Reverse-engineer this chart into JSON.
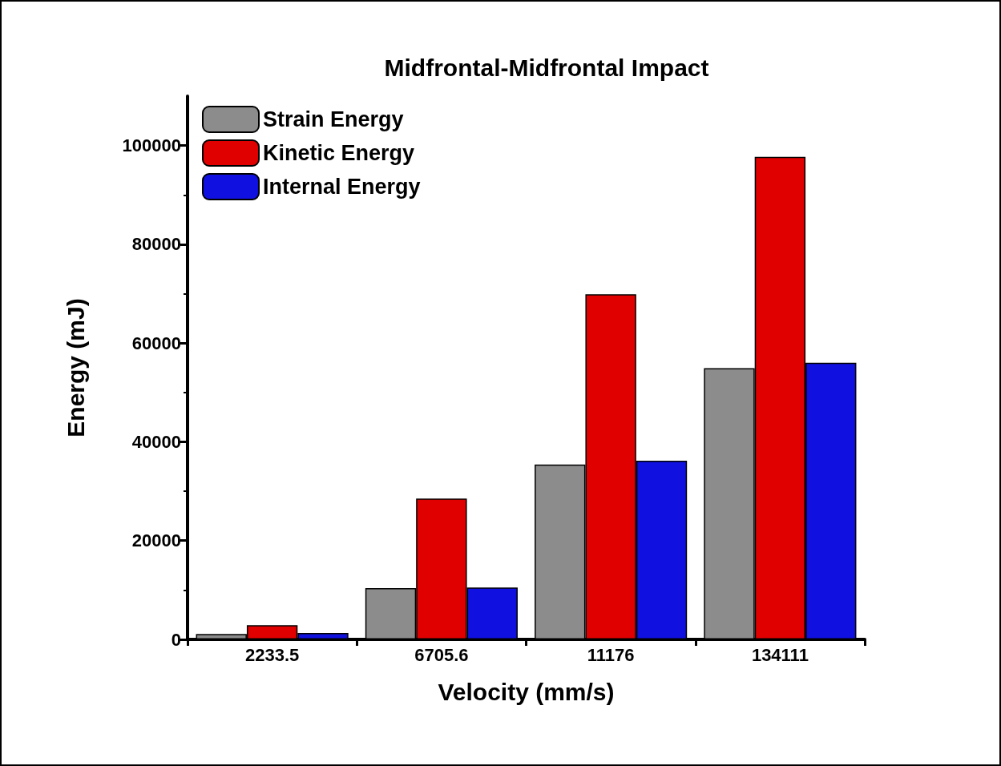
{
  "chart_data": {
    "type": "bar",
    "title": "Midfrontal-Midfrontal Impact",
    "xlabel": "Velocity (mm/s)",
    "ylabel": "Energy (mJ)",
    "categories": [
      "2233.5",
      "6705.6",
      "11176",
      "134111"
    ],
    "series": [
      {
        "name": "Strain Energy",
        "color": "#8c8c8c",
        "values": [
          1100,
          10400,
          35400,
          54900
        ]
      },
      {
        "name": "Kinetic Energy",
        "color": "#e00000",
        "values": [
          2900,
          28500,
          69900,
          97700
        ]
      },
      {
        "name": "Internal Energy",
        "color": "#1010e0",
        "values": [
          1300,
          10500,
          36200,
          56000
        ]
      }
    ],
    "ylim": [
      0,
      110000
    ],
    "yticks": [
      0,
      20000,
      40000,
      60000,
      80000,
      100000
    ],
    "grid": false,
    "legend": "top left"
  }
}
